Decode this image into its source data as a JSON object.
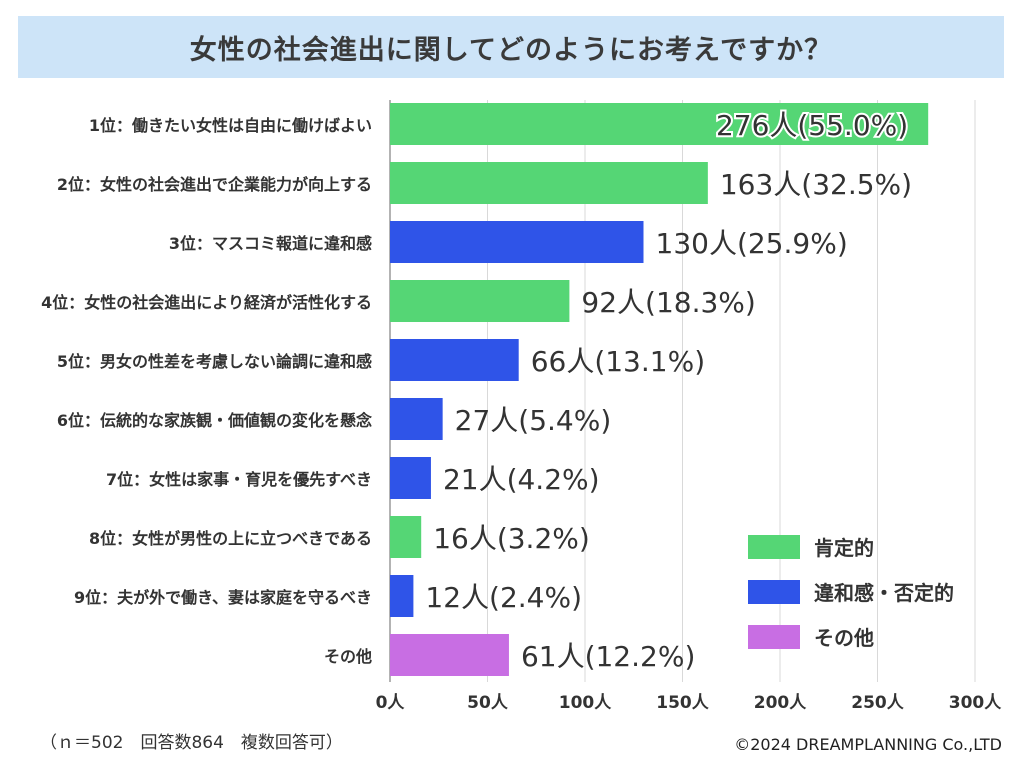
{
  "header": {
    "title": "女性の社会進出に関してどのようにお考えですか？"
  },
  "footer": {
    "note": "（ｎ＝502　回答数864　複数回答可）",
    "credit": "©2024 DREAMPLANNING Co.,LTD"
  },
  "colors": {
    "positive": "#55d675",
    "negative": "#2f54e8",
    "other": "#c86ee3",
    "grid": "#d9d9d9",
    "axis": "#9a9a9a"
  },
  "chart_data": {
    "type": "bar",
    "orientation": "horizontal",
    "title": "女性の社会進出に関してどのようにお考えですか？",
    "xlim": [
      0,
      300
    ],
    "x_ticks": [
      "0人",
      "50人",
      "100人",
      "150人",
      "200人",
      "250人",
      "300人"
    ],
    "categories": [
      "1位：働きたい女性は自由に働けばよい",
      "2位：女性の社会進出で企業能力が向上する",
      "3位：マスコミ報道に違和感",
      "4位：女性の社会進出により経済が活性化する",
      "5位：男女の性差を考慮しない論調に違和感",
      "6位：伝統的な家族観・価値観の変化を懸念",
      "7位：女性は家事・育児を優先すべき",
      "8位：女性が男性の上に立つべきである",
      "9位：夫が外で働き、妻は家庭を守るべき",
      "その他"
    ],
    "values": [
      276,
      163,
      130,
      92,
      66,
      27,
      21,
      16,
      12,
      61
    ],
    "data_labels": [
      "276人(55.0%)",
      "163人(32.5%)",
      "130人(25.9%)",
      "92人(18.3%)",
      "66人(13.1%)",
      "27人(5.4%)",
      "21人(4.2%)",
      "16人(3.2%)",
      "12人(2.4%)",
      "61人(12.2%)"
    ],
    "groups": [
      "positive",
      "positive",
      "negative",
      "positive",
      "negative",
      "negative",
      "negative",
      "positive",
      "negative",
      "other"
    ],
    "legend": {
      "position": "bottom-right",
      "entries": [
        {
          "key": "positive",
          "label": "肯定的"
        },
        {
          "key": "negative",
          "label": "違和感・否定的"
        },
        {
          "key": "other",
          "label": "その他"
        }
      ]
    },
    "grid": "vertical"
  }
}
